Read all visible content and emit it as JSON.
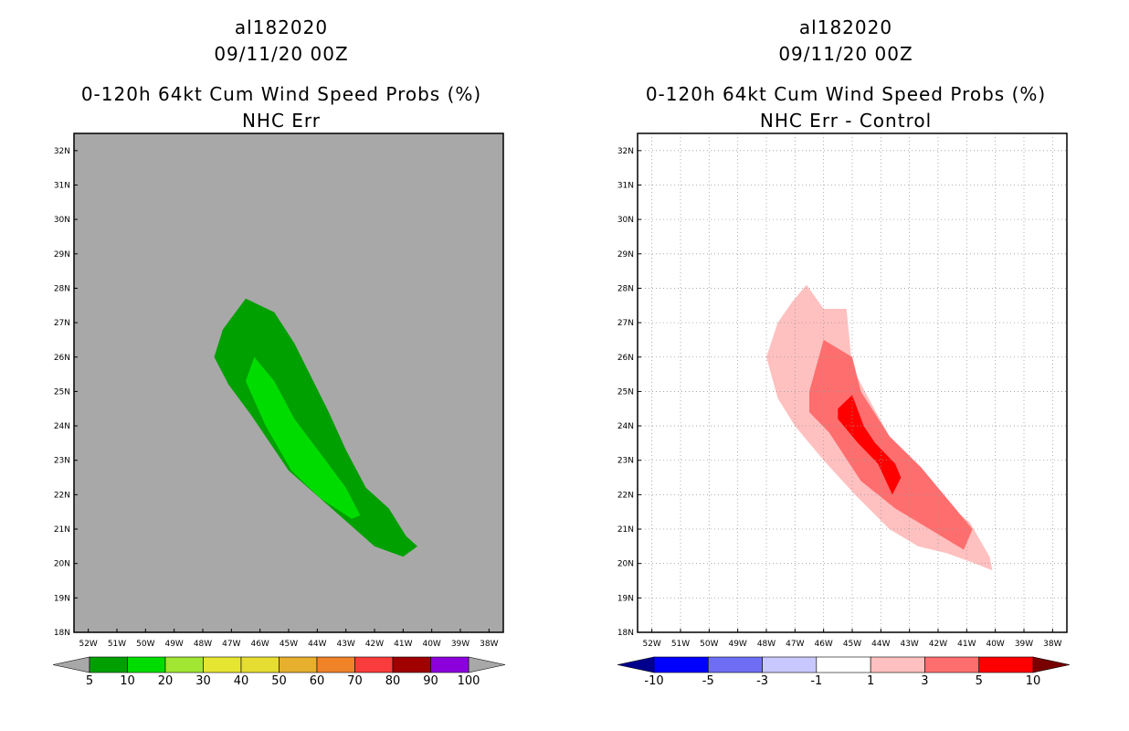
{
  "chart_data": [
    {
      "type": "filled-contour-map",
      "title_lines": [
        "al182020",
        "09/11/20 00Z",
        "0-120h 64kt Cum Wind Speed Probs (%)",
        "NHC Err"
      ],
      "lon_ticks": [
        "52W",
        "51W",
        "50W",
        "49W",
        "48W",
        "47W",
        "46W",
        "45W",
        "44W",
        "43W",
        "42W",
        "41W",
        "40W",
        "39W",
        "38W"
      ],
      "lat_ticks": [
        "18N",
        "19N",
        "20N",
        "21N",
        "22N",
        "23N",
        "24N",
        "25N",
        "26N",
        "27N",
        "28N",
        "29N",
        "30N",
        "31N",
        "32N"
      ],
      "lon_range": [
        -52.5,
        -37.5
      ],
      "lat_range": [
        18,
        32.5
      ],
      "background_color": "#a8a8a8",
      "grid": false,
      "colorbar": {
        "labels": [
          "5",
          "10",
          "20",
          "30",
          "40",
          "50",
          "60",
          "70",
          "80",
          "90",
          "100"
        ],
        "colors": [
          "#00a000",
          "#00dc00",
          "#a0e632",
          "#e6e632",
          "#e6dc32",
          "#e6af2d",
          "#f08228",
          "#fa3c3c",
          "#a00000",
          "#8c00dc"
        ],
        "end_color": "#a8a8a8"
      },
      "contours": [
        {
          "level": "5-10",
          "color": "#00a000",
          "points": [
            [
              -47.6,
              26
            ],
            [
              -47.3,
              26.8
            ],
            [
              -46.5,
              27.7
            ],
            [
              -45.5,
              27.3
            ],
            [
              -44.8,
              26.4
            ],
            [
              -44.2,
              25.4
            ],
            [
              -43.6,
              24.4
            ],
            [
              -43,
              23.3
            ],
            [
              -42.3,
              22.2
            ],
            [
              -41.5,
              21.6
            ],
            [
              -40.9,
              20.8
            ],
            [
              -40.5,
              20.5
            ],
            [
              -41,
              20.2
            ],
            [
              -42,
              20.5
            ],
            [
              -43.5,
              21.6
            ],
            [
              -45,
              22.7
            ],
            [
              -46.3,
              24.3
            ],
            [
              -47.1,
              25.2
            ]
          ]
        },
        {
          "level": "10-20",
          "color": "#00dc00",
          "points": [
            [
              -46.2,
              26
            ],
            [
              -45.5,
              25.3
            ],
            [
              -44.8,
              24.2
            ],
            [
              -43.8,
              23.1
            ],
            [
              -43,
              22.2
            ],
            [
              -42.5,
              21.4
            ],
            [
              -42.8,
              21.3
            ],
            [
              -43.9,
              21.9
            ],
            [
              -44.9,
              22.7
            ],
            [
              -45.8,
              24
            ],
            [
              -46.5,
              25.3
            ]
          ]
        }
      ]
    },
    {
      "type": "filled-contour-map",
      "title_lines": [
        "al182020",
        "09/11/20 00Z",
        "0-120h 64kt Cum Wind Speed Probs (%)",
        "NHC Err - Control"
      ],
      "lon_ticks": [
        "52W",
        "51W",
        "50W",
        "49W",
        "48W",
        "47W",
        "46W",
        "45W",
        "44W",
        "43W",
        "42W",
        "41W",
        "40W",
        "39W",
        "38W"
      ],
      "lat_ticks": [
        "18N",
        "19N",
        "20N",
        "21N",
        "22N",
        "23N",
        "24N",
        "25N",
        "26N",
        "27N",
        "28N",
        "29N",
        "30N",
        "31N",
        "32N"
      ],
      "lon_range": [
        -52.5,
        -37.5
      ],
      "lat_range": [
        18,
        32.5
      ],
      "background_color": "#ffffff",
      "grid": true,
      "colorbar": {
        "labels": [
          "-10",
          "-5",
          "-3",
          "-1",
          "1",
          "3",
          "5",
          "10"
        ],
        "colors": [
          "#0000ff",
          "#6e6ef5",
          "#c8c8ff",
          "#ffffff",
          "#ffc0c0",
          "#ff6e6e",
          "#ff0000"
        ],
        "low_end_color": "#00008c",
        "high_end_color": "#780000"
      },
      "contours": [
        {
          "level": "1-3",
          "color": "#ffc0c0",
          "points": [
            [
              -48,
              26
            ],
            [
              -47.6,
              27
            ],
            [
              -47.1,
              27.6
            ],
            [
              -46.6,
              28.1
            ],
            [
              -46,
              27.4
            ],
            [
              -45.2,
              27.4
            ],
            [
              -45,
              25.7
            ],
            [
              -44.3,
              24.6
            ],
            [
              -43.5,
              23.4
            ],
            [
              -42.8,
              22.6
            ],
            [
              -41.8,
              21.8
            ],
            [
              -40.9,
              21.2
            ],
            [
              -40.2,
              20.2
            ],
            [
              -40.1,
              19.8
            ],
            [
              -40.7,
              20
            ],
            [
              -41.7,
              20.3
            ],
            [
              -42.7,
              20.5
            ],
            [
              -43.7,
              21
            ],
            [
              -44.9,
              22
            ],
            [
              -46,
              23
            ],
            [
              -47,
              24
            ],
            [
              -47.6,
              24.8
            ]
          ]
        },
        {
          "level": "3-5",
          "color": "#ff6e6e",
          "points": [
            [
              -46.5,
              25
            ],
            [
              -46,
              26.5
            ],
            [
              -45,
              26
            ],
            [
              -44.7,
              25
            ],
            [
              -43.7,
              23.7
            ],
            [
              -42.6,
              22.8
            ],
            [
              -41.6,
              21.8
            ],
            [
              -40.8,
              21
            ],
            [
              -41.1,
              20.4
            ],
            [
              -42.3,
              21
            ],
            [
              -43.5,
              21.6
            ],
            [
              -44.7,
              22.4
            ],
            [
              -45.8,
              23.8
            ],
            [
              -46.5,
              24.4
            ]
          ]
        },
        {
          "level": "5-10",
          "color": "#ff0000",
          "points": [
            [
              -45.5,
              24.5
            ],
            [
              -45,
              24.9
            ],
            [
              -44.6,
              24
            ],
            [
              -44.2,
              23.5
            ],
            [
              -43.5,
              22.9
            ],
            [
              -43.3,
              22.5
            ],
            [
              -43.6,
              22
            ],
            [
              -44.1,
              22.9
            ],
            [
              -44.8,
              23.5
            ],
            [
              -45.5,
              24.2
            ]
          ]
        }
      ]
    }
  ]
}
